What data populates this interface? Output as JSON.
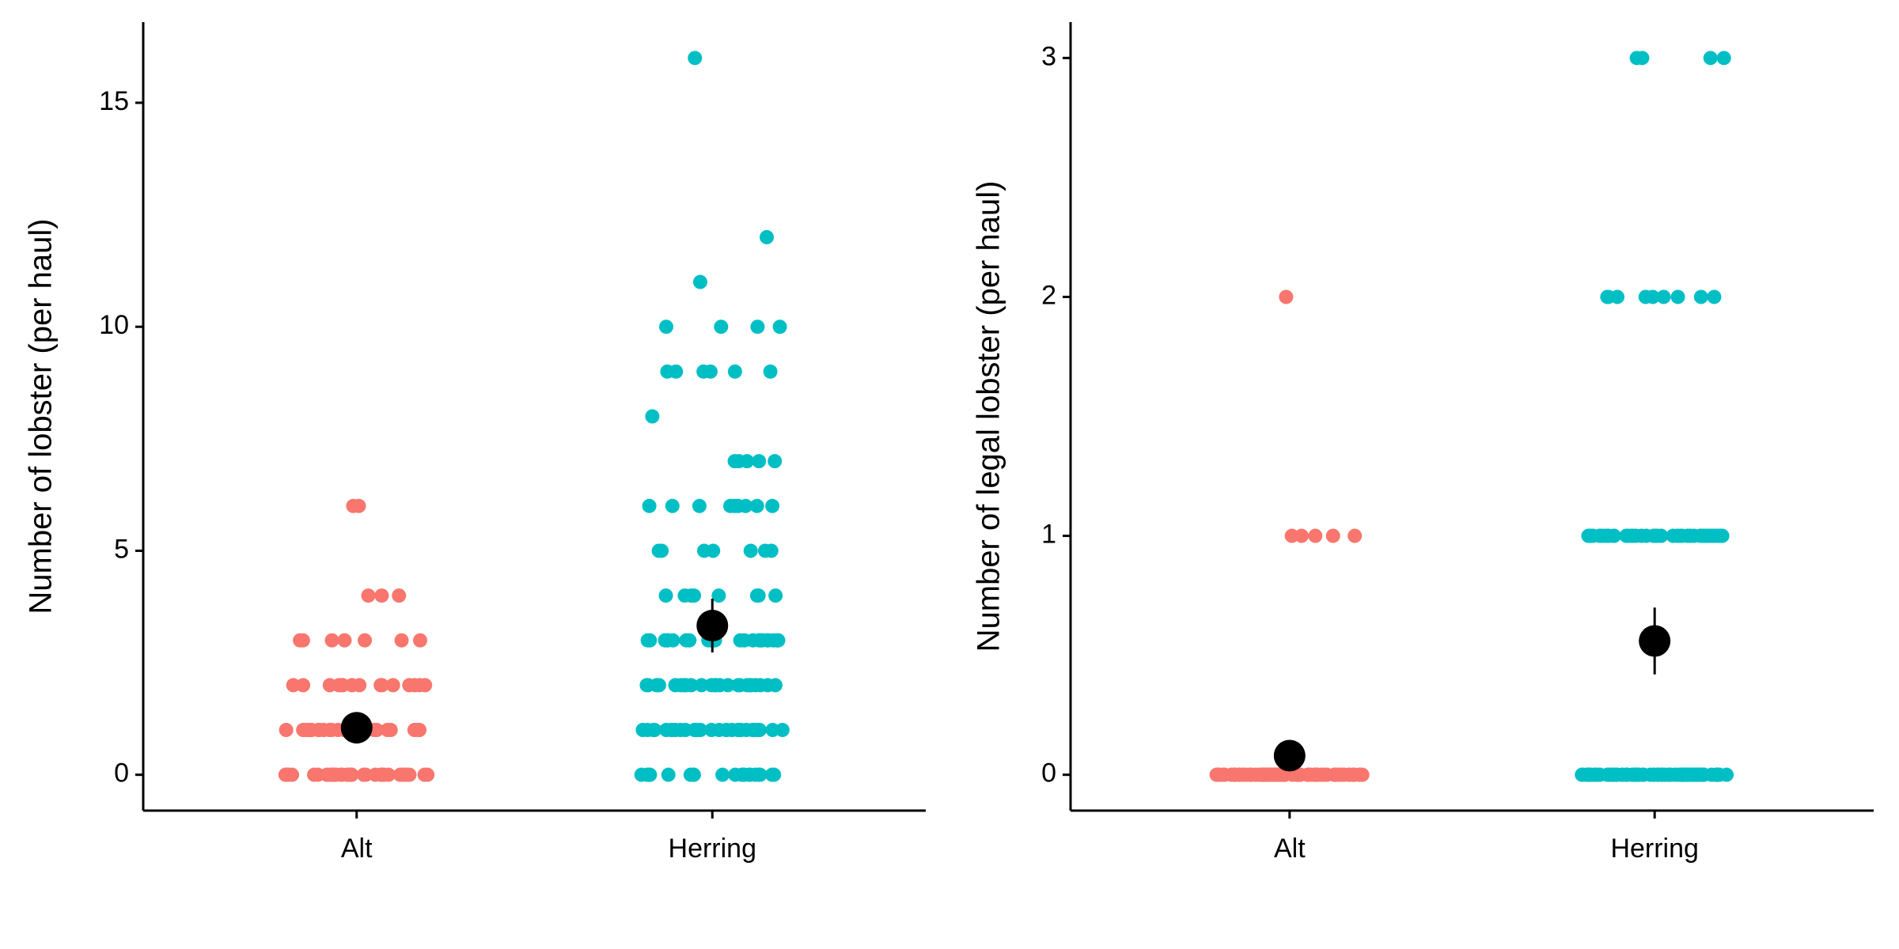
{
  "chart_data": [
    {
      "type": "strip",
      "ylabel": "Number of lobster (per haul)",
      "categories": [
        "Alt",
        "Herring"
      ],
      "series": [
        {
          "color": "#F8766D",
          "values": [
            0,
            0,
            0,
            0,
            0,
            0,
            0,
            0,
            0,
            0,
            0,
            0,
            0,
            0,
            0,
            0,
            0,
            0,
            0,
            0,
            0,
            0,
            0,
            0,
            0,
            0,
            0,
            0,
            0,
            0,
            0,
            0,
            0,
            0,
            0,
            1,
            1,
            1,
            1,
            1,
            1,
            1,
            1,
            1,
            1,
            1,
            1,
            1,
            1,
            1,
            1,
            1,
            1,
            1,
            1,
            1,
            1,
            1,
            1,
            1,
            2,
            2,
            2,
            2,
            2,
            2,
            2,
            2,
            2,
            2,
            2,
            2,
            2,
            2,
            2,
            3,
            3,
            3,
            3,
            3,
            3,
            3,
            4,
            4,
            4,
            6,
            6
          ]
        },
        {
          "color": "#00BFC4",
          "values": [
            0,
            0,
            0,
            0,
            0,
            0,
            0,
            0,
            0,
            0,
            0,
            0,
            0,
            0,
            0,
            0,
            0,
            0,
            0,
            0,
            1,
            1,
            1,
            1,
            1,
            1,
            1,
            1,
            1,
            1,
            1,
            1,
            1,
            1,
            1,
            1,
            1,
            1,
            1,
            1,
            1,
            1,
            1,
            1,
            1,
            1,
            1,
            1,
            1,
            1,
            2,
            2,
            2,
            2,
            2,
            2,
            2,
            2,
            2,
            2,
            2,
            2,
            2,
            2,
            2,
            2,
            2,
            2,
            2,
            2,
            2,
            2,
            2,
            2,
            2,
            3,
            3,
            3,
            3,
            3,
            3,
            3,
            3,
            3,
            3,
            3,
            3,
            3,
            3,
            3,
            3,
            3,
            3,
            3,
            3,
            3,
            3,
            3,
            3,
            3,
            4,
            4,
            4,
            4,
            4,
            4,
            4,
            4,
            5,
            5,
            5,
            5,
            5,
            5,
            5,
            6,
            6,
            6,
            6,
            6,
            6,
            6,
            6,
            6,
            7,
            7,
            7,
            7,
            7,
            8,
            9,
            9,
            9,
            9,
            9,
            9,
            10,
            10,
            10,
            10,
            11,
            12,
            16
          ]
        }
      ],
      "means": [
        1.05,
        3.33
      ],
      "errors": [
        0.2,
        0.6
      ],
      "ylim": [
        -0.8,
        16.8
      ],
      "yticks": [
        0,
        5,
        10,
        15
      ]
    },
    {
      "type": "strip",
      "ylabel": "Number of legal lobster (per haul)",
      "categories": [
        "Alt",
        "Herring"
      ],
      "series": [
        {
          "color": "#F8766D",
          "values": [
            0,
            0,
            0,
            0,
            0,
            0,
            0,
            0,
            0,
            0,
            0,
            0,
            0,
            0,
            0,
            0,
            0,
            0,
            0,
            0,
            0,
            0,
            0,
            0,
            0,
            0,
            0,
            0,
            0,
            0,
            0,
            0,
            0,
            0,
            0,
            0,
            0,
            0,
            0,
            0,
            0,
            0,
            0,
            0,
            0,
            0,
            0,
            0,
            0,
            0,
            0,
            0,
            0,
            0,
            0,
            0,
            0,
            0,
            0,
            0,
            0,
            0,
            0,
            0,
            0,
            0,
            0,
            0,
            0,
            0,
            0,
            0,
            0,
            0,
            0,
            0,
            0,
            0,
            0,
            0,
            0,
            1,
            1,
            1,
            1,
            1,
            2
          ]
        },
        {
          "color": "#00BFC4",
          "values": [
            0,
            0,
            0,
            0,
            0,
            0,
            0,
            0,
            0,
            0,
            0,
            0,
            0,
            0,
            0,
            0,
            0,
            0,
            0,
            0,
            0,
            0,
            0,
            0,
            0,
            0,
            0,
            0,
            0,
            0,
            0,
            0,
            0,
            0,
            0,
            0,
            0,
            0,
            0,
            0,
            0,
            0,
            0,
            0,
            0,
            0,
            0,
            0,
            0,
            0,
            0,
            0,
            0,
            0,
            0,
            0,
            0,
            0,
            0,
            0,
            0,
            0,
            0,
            0,
            0,
            0,
            0,
            0,
            0,
            0,
            0,
            0,
            0,
            0,
            0,
            0,
            0,
            0,
            0,
            0,
            1,
            1,
            1,
            1,
            1,
            1,
            1,
            1,
            1,
            1,
            1,
            1,
            1,
            1,
            1,
            1,
            1,
            1,
            1,
            1,
            1,
            1,
            1,
            1,
            1,
            1,
            1,
            1,
            1,
            1,
            1,
            1,
            1,
            1,
            1,
            1,
            1,
            1,
            1,
            1,
            1,
            1,
            1,
            1,
            1,
            1,
            1,
            1,
            1,
            1,
            2,
            2,
            2,
            2,
            2,
            2,
            2,
            2,
            2,
            3,
            3,
            3,
            3
          ]
        }
      ],
      "means": [
        0.08,
        0.56
      ],
      "errors": [
        0.04,
        0.14
      ],
      "ylim": [
        -0.15,
        3.15
      ],
      "yticks": [
        0,
        1,
        2,
        3
      ]
    }
  ]
}
